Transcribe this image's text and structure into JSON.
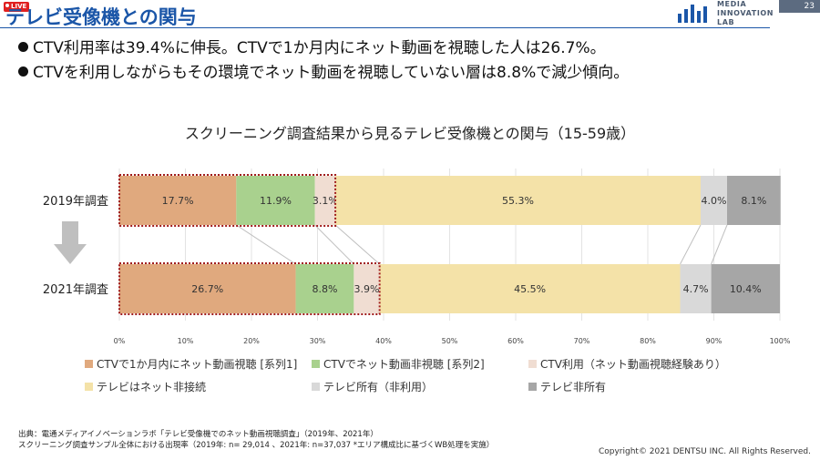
{
  "header": {
    "live_badge": "LIVE",
    "title": "テレビ受像機との関与",
    "logo_text": [
      "MEDIA",
      "INNOVATION",
      "LAB"
    ],
    "page_number": "23",
    "accent_color": "#1b56a8"
  },
  "bullets": [
    "CTV利用率は39.4%に伸長。CTVで1か月内にネット動画を視聴した人は26.7%。",
    "CTVを利用しながらもその環境でネット動画を視聴していない層は8.8%で減少傾向。"
  ],
  "chart_data": {
    "type": "bar",
    "stacked": true,
    "orientation": "horizontal",
    "title": "スクリーニング調査結果から見るテレビ受像機との関与（15-59歳）",
    "categories": [
      "2019年調査",
      "2021年調査"
    ],
    "series": [
      {
        "name": "CTVで1か月内にネット動画視聴 [系列1]",
        "values": [
          17.7,
          26.7
        ],
        "color": "#e0a97e"
      },
      {
        "name": "CTVでネット動画非視聴 [系列2]",
        "values": [
          11.9,
          8.8
        ],
        "color": "#a9d18e"
      },
      {
        "name": "CTV利用（ネット動画視聴経験あり）",
        "values": [
          3.1,
          3.9
        ],
        "color": "#f0ddd2"
      },
      {
        "name": "テレビはネット非接続",
        "values": [
          55.3,
          45.5
        ],
        "color": "#f4e2a8"
      },
      {
        "name": "テレビ所有（非利用）",
        "values": [
          4.0,
          4.7
        ],
        "color": "#d9d9d9"
      },
      {
        "name": "テレビ非所有",
        "values": [
          8.1,
          10.4
        ],
        "color": "#a6a6a6"
      }
    ],
    "data_labels": [
      [
        "17.7%",
        "11.9%",
        "3.1%",
        "55.3%",
        "4.0%",
        "8.1%"
      ],
      [
        "26.7%",
        "8.8%",
        "3.9%",
        "45.5%",
        "4.7%",
        "10.4%"
      ]
    ],
    "xlim": [
      0,
      100
    ],
    "xticks": [
      "0%",
      "10%",
      "20%",
      "30%",
      "40%",
      "50%",
      "60%",
      "70%",
      "80%",
      "90%",
      "100%"
    ],
    "grid": true,
    "legend_position": "bottom",
    "highlight_box_color": "#a01c1c"
  },
  "source": [
    "出典：電通メディアイノベーションラボ「テレビ受像機でのネット動画視聴調査」（2019年、2021年）",
    "スクリーニング調査サンプル全体における出現率（2019年: n= 29,014 、2021年: n=37,037 *エリア構成比に基づくWB処理を実施）"
  ],
  "copyright": "Copyright© 2021 DENTSU INC. All Rights Reserved."
}
